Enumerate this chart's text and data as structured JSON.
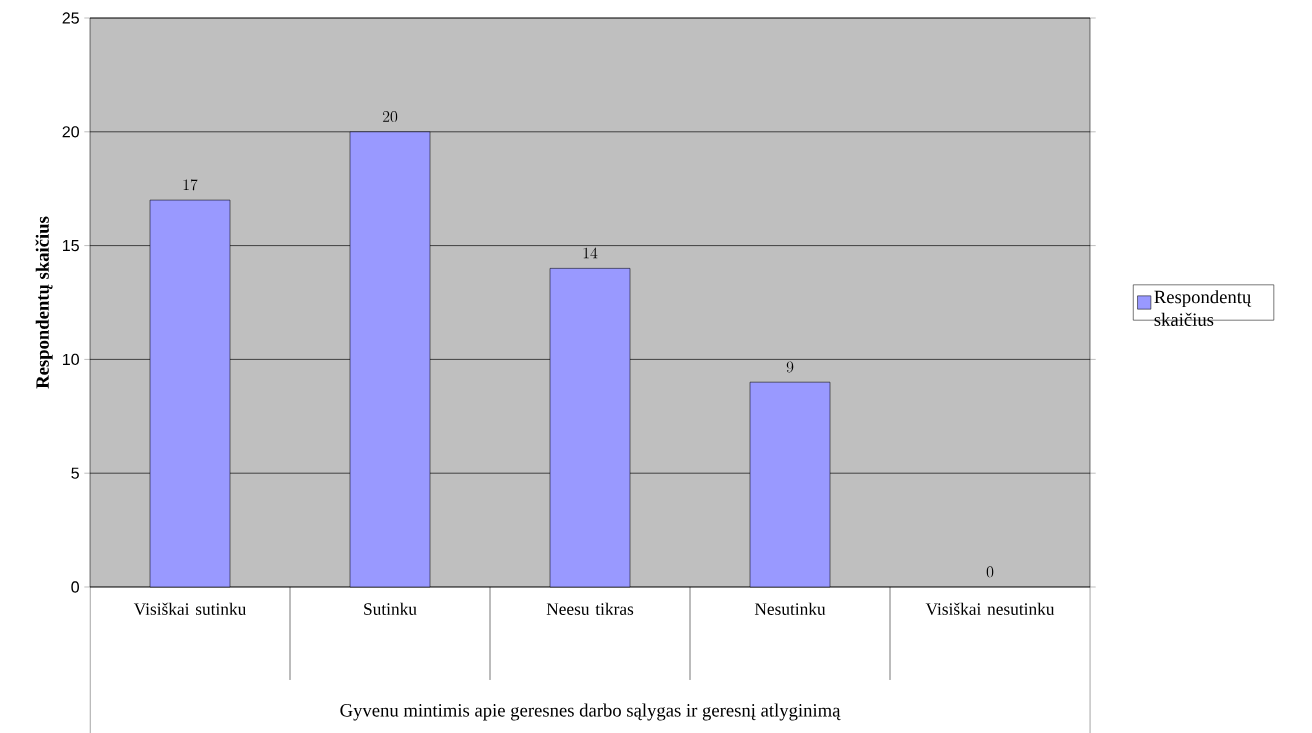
{
  "chart_data": {
    "type": "bar",
    "categories": [
      "Visiškai sutinku",
      "Sutinku",
      "Neesu tikras",
      "Nesutinku",
      "Visiškai nesutinku"
    ],
    "series": [
      {
        "name": "Respondentų skaičius",
        "color": "#9999ff",
        "values": [
          17,
          20,
          14,
          9,
          0
        ]
      }
    ],
    "xlabel": "Gyvenu mintimis apie geresnes darbo sąlygas ir geresnį atlyginimą",
    "ylabel": "Respondentų skaičius",
    "ylim": [
      0,
      25
    ],
    "yticks": [
      0,
      5,
      10,
      15,
      20,
      25
    ],
    "grid": "y",
    "legend": "right",
    "data_labels": true
  }
}
